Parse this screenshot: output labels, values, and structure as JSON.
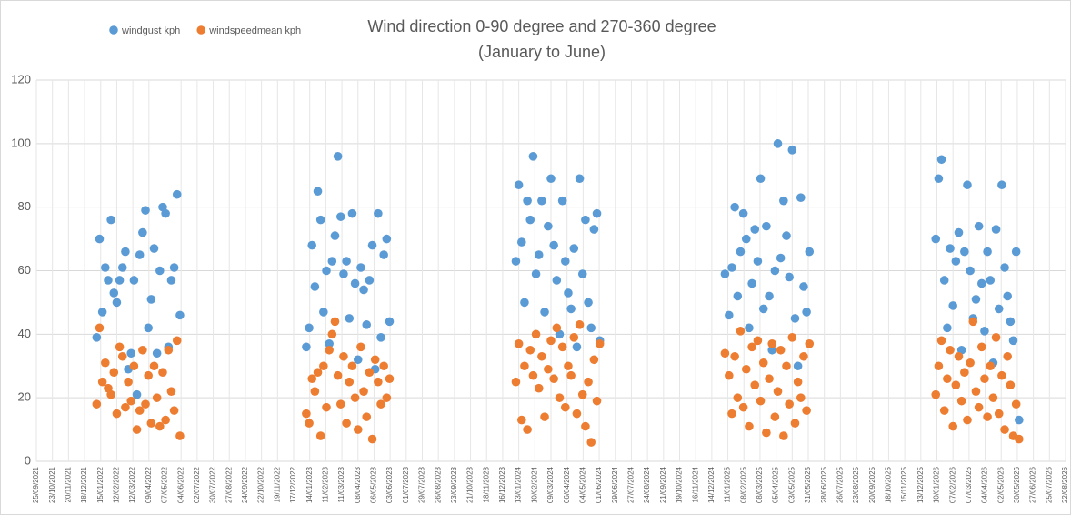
{
  "chart_data": {
    "type": "scatter",
    "title": "Wind direction 0-90 degree and 270-360 degree",
    "subtitle": "(January to June)",
    "legend": "top-left",
    "grid": true,
    "ylim": [
      0,
      120
    ],
    "yticks": [
      0,
      20,
      40,
      60,
      80,
      100,
      120
    ],
    "xlim": [
      "25/09/2021",
      "22/08/2026"
    ],
    "xticks": [
      "25/09/2021",
      "23/10/2021",
      "20/11/2021",
      "18/12/2021",
      "15/01/2022",
      "12/02/2022",
      "12/03/2022",
      "09/04/2022",
      "07/05/2022",
      "04/06/2022",
      "02/07/2022",
      "30/07/2022",
      "27/08/2022",
      "24/09/2022",
      "22/10/2022",
      "19/11/2022",
      "17/12/2022",
      "14/01/2023",
      "11/02/2023",
      "11/03/2023",
      "08/04/2023",
      "06/05/2023",
      "03/06/2023",
      "01/07/2023",
      "29/07/2023",
      "26/08/2023",
      "23/09/2023",
      "21/10/2023",
      "18/11/2023",
      "16/12/2023",
      "13/01/2024",
      "10/02/2024",
      "09/03/2024",
      "06/04/2024",
      "04/05/2024",
      "01/06/2024",
      "29/06/2024",
      "27/07/2024",
      "24/08/2024",
      "21/09/2024",
      "19/10/2024",
      "16/11/2024",
      "14/12/2024",
      "11/01/2025",
      "08/02/2025",
      "08/03/2025",
      "05/04/2025",
      "03/05/2025",
      "31/05/2025",
      "28/06/2025",
      "26/07/2025",
      "23/08/2025",
      "20/09/2025",
      "18/10/2025",
      "15/11/2025",
      "13/12/2025",
      "10/01/2026",
      "07/02/2026",
      "07/03/2026",
      "04/04/2026",
      "02/05/2026",
      "30/05/2026",
      "27/06/2026",
      "25/07/2026",
      "22/08/2026"
    ],
    "x": [
      "08/01/2022",
      "13/01/2022",
      "18/01/2022",
      "23/01/2022",
      "28/01/2022",
      "02/02/2022",
      "07/02/2022",
      "12/02/2022",
      "17/02/2022",
      "22/02/2022",
      "27/02/2022",
      "04/03/2022",
      "09/03/2022",
      "14/03/2022",
      "19/03/2022",
      "24/03/2022",
      "29/03/2022",
      "03/04/2022",
      "08/04/2022",
      "13/04/2022",
      "18/04/2022",
      "23/04/2022",
      "28/04/2022",
      "03/05/2022",
      "08/05/2022",
      "13/05/2022",
      "18/05/2022",
      "23/05/2022",
      "28/05/2022",
      "02/06/2022",
      "08/01/2023",
      "13/01/2023",
      "18/01/2023",
      "23/01/2023",
      "28/01/2023",
      "02/02/2023",
      "07/02/2023",
      "12/02/2023",
      "17/02/2023",
      "22/02/2023",
      "27/02/2023",
      "04/03/2023",
      "09/03/2023",
      "14/03/2023",
      "19/03/2023",
      "24/03/2023",
      "29/03/2023",
      "03/04/2023",
      "08/04/2023",
      "13/04/2023",
      "18/04/2023",
      "23/04/2023",
      "28/04/2023",
      "03/05/2023",
      "08/05/2023",
      "13/05/2023",
      "18/05/2023",
      "23/05/2023",
      "28/05/2023",
      "02/06/2023",
      "08/01/2024",
      "13/01/2024",
      "18/01/2024",
      "23/01/2024",
      "28/01/2024",
      "02/02/2024",
      "07/02/2024",
      "12/02/2024",
      "17/02/2024",
      "22/02/2024",
      "27/02/2024",
      "04/03/2024",
      "09/03/2024",
      "14/03/2024",
      "19/03/2024",
      "24/03/2024",
      "29/03/2024",
      "03/04/2024",
      "08/04/2024",
      "13/04/2024",
      "18/04/2024",
      "23/04/2024",
      "28/04/2024",
      "03/05/2024",
      "08/05/2024",
      "13/05/2024",
      "18/05/2024",
      "23/05/2024",
      "28/05/2024",
      "02/06/2024",
      "06/01/2025",
      "13/01/2025",
      "18/01/2025",
      "23/01/2025",
      "28/01/2025",
      "02/02/2025",
      "07/02/2025",
      "12/02/2025",
      "17/02/2025",
      "22/02/2025",
      "27/02/2025",
      "04/03/2025",
      "09/03/2025",
      "14/03/2025",
      "19/03/2025",
      "24/03/2025",
      "29/03/2025",
      "03/04/2025",
      "08/04/2025",
      "13/04/2025",
      "18/04/2025",
      "23/04/2025",
      "28/04/2025",
      "03/05/2025",
      "08/05/2025",
      "13/05/2025",
      "18/05/2025",
      "23/05/2025",
      "28/05/2025",
      "02/06/2025",
      "08/01/2026",
      "13/01/2026",
      "18/01/2026",
      "23/01/2026",
      "28/01/2026",
      "02/02/2026",
      "07/02/2026",
      "12/02/2026",
      "17/02/2026",
      "22/02/2026",
      "27/02/2026",
      "04/03/2026",
      "09/03/2026",
      "14/03/2026",
      "19/03/2026",
      "24/03/2026",
      "29/03/2026",
      "03/04/2026",
      "08/04/2026",
      "13/04/2026",
      "18/04/2026",
      "23/04/2026",
      "28/04/2026",
      "03/05/2026",
      "08/05/2026",
      "13/05/2026",
      "18/05/2026",
      "23/05/2026",
      "28/05/2026",
      "02/06/2026"
    ],
    "series": [
      {
        "name": "windgust kph",
        "color": "#5b9bd5",
        "values": [
          39,
          70,
          47,
          61,
          57,
          76,
          53,
          50,
          57,
          61,
          66,
          29,
          34,
          57,
          21,
          65,
          72,
          79,
          42,
          51,
          67,
          34,
          60,
          80,
          78,
          36,
          57,
          61,
          84,
          46,
          36,
          42,
          68,
          55,
          85,
          76,
          47,
          60,
          37,
          63,
          71,
          96,
          77,
          59,
          63,
          45,
          78,
          56,
          32,
          61,
          54,
          43,
          57,
          68,
          29,
          78,
          39,
          65,
          70,
          44,
          63,
          87,
          69,
          50,
          82,
          76,
          96,
          59,
          65,
          82,
          47,
          74,
          89,
          68,
          57,
          40,
          82,
          63,
          53,
          48,
          67,
          36,
          89,
          59,
          76,
          50,
          42,
          73,
          78,
          38,
          59,
          46,
          61,
          80,
          52,
          66,
          78,
          70,
          42,
          56,
          73,
          63,
          89,
          48,
          74,
          52,
          35,
          60,
          100,
          64,
          82,
          71,
          58,
          98,
          45,
          30,
          83,
          55,
          47,
          66,
          70,
          89,
          95,
          57,
          42,
          67,
          49,
          63,
          72,
          35,
          66,
          87,
          60,
          45,
          51,
          74,
          56,
          41,
          66,
          57,
          31,
          73,
          48,
          87,
          61,
          52,
          44,
          38,
          66,
          13
        ]
      },
      {
        "name": "windspeedmean kph",
        "color": "#ed7d31",
        "values": [
          18,
          42,
          25,
          31,
          23,
          21,
          28,
          15,
          36,
          33,
          17,
          25,
          19,
          30,
          10,
          16,
          35,
          18,
          27,
          12,
          30,
          20,
          11,
          28,
          13,
          35,
          22,
          16,
          38,
          8,
          15,
          12,
          26,
          22,
          28,
          8,
          30,
          17,
          35,
          40,
          44,
          27,
          18,
          33,
          12,
          25,
          30,
          20,
          10,
          36,
          22,
          14,
          28,
          7,
          32,
          25,
          18,
          30,
          20,
          26,
          25,
          37,
          13,
          30,
          10,
          35,
          27,
          40,
          23,
          33,
          14,
          29,
          38,
          26,
          42,
          20,
          36,
          17,
          30,
          27,
          39,
          15,
          43,
          21,
          11,
          25,
          6,
          32,
          19,
          37,
          34,
          27,
          15,
          33,
          20,
          41,
          17,
          29,
          11,
          36,
          24,
          38,
          19,
          31,
          9,
          26,
          37,
          14,
          22,
          35,
          8,
          30,
          18,
          39,
          12,
          25,
          20,
          33,
          16,
          37,
          21,
          30,
          38,
          16,
          26,
          35,
          11,
          24,
          33,
          19,
          28,
          13,
          31,
          44,
          22,
          17,
          36,
          26,
          14,
          30,
          20,
          39,
          15,
          27,
          10,
          33,
          24,
          8,
          18,
          7
        ]
      }
    ]
  }
}
